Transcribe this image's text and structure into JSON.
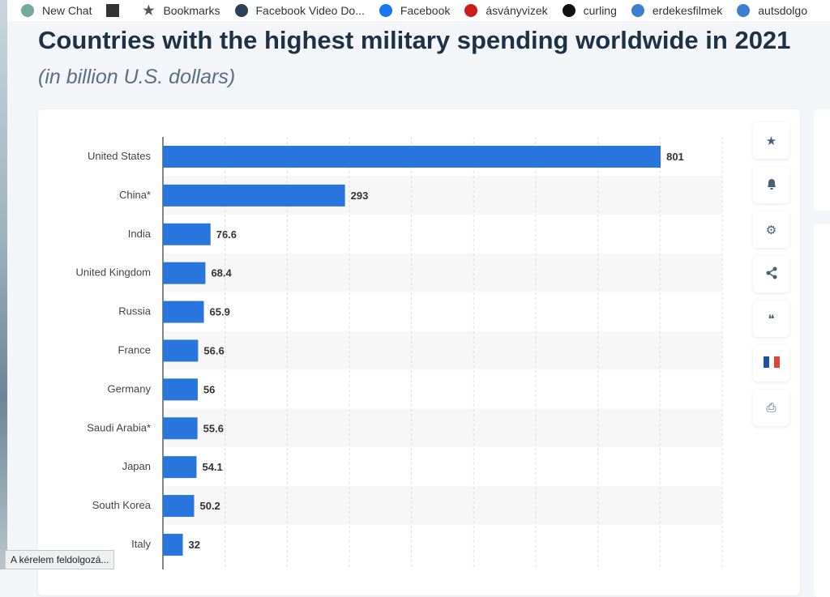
{
  "bookmarks": [
    {
      "label": "New Chat",
      "icon": "chatgpt-icon",
      "color": "#74aa9c"
    },
    {
      "label": "",
      "icon": "image-thumbnail-icon",
      "color": "#333"
    },
    {
      "label": "Bookmarks",
      "icon": "star-icon",
      "color": "#555"
    },
    {
      "label": "Facebook Video Do...",
      "icon": "facebook-f-icon",
      "color": "#2d4059"
    },
    {
      "label": "Facebook",
      "icon": "facebook-icon",
      "color": "#1877f2"
    },
    {
      "label": "ásványvizek",
      "icon": "target-icon",
      "color": "#cc1d1d"
    },
    {
      "label": "curling",
      "icon": "s-logo-icon",
      "color": "#111"
    },
    {
      "label": "erdekesfilmek",
      "icon": "blogger-icon",
      "color": "#3b7fd0"
    },
    {
      "label": "autsdolgo",
      "icon": "blogger-icon",
      "color": "#3b7fd0"
    }
  ],
  "header": {
    "title": "Countries with the highest military spending worldwide in 2021",
    "subtitle": "(in billion U.S. dollars)"
  },
  "tools": [
    {
      "icon": "star-icon",
      "glyph": "★"
    },
    {
      "icon": "bell-icon",
      "glyph": "🔔"
    },
    {
      "icon": "gear-icon",
      "glyph": "⚙"
    },
    {
      "icon": "share-icon",
      "glyph": "⋖"
    },
    {
      "icon": "quote-icon",
      "glyph": "❝"
    },
    {
      "icon": "french-flag-icon",
      "glyph": ""
    },
    {
      "icon": "print-icon",
      "glyph": "⎙"
    }
  ],
  "status": "A kérelem feldolgozá...",
  "colors": {
    "bar": "#2876dd",
    "label": "#333"
  },
  "chart_data": {
    "type": "bar",
    "orientation": "horizontal",
    "title": "Countries with the highest military spending worldwide in 2021",
    "subtitle": "(in billion U.S. dollars)",
    "categories": [
      "United States",
      "China*",
      "India",
      "United Kingdom",
      "Russia",
      "France",
      "Germany",
      "Saudi Arabia*",
      "Japan",
      "South Korea",
      "Italy"
    ],
    "values": [
      801,
      293,
      76.6,
      68.4,
      65.9,
      56.6,
      56,
      55.6,
      54.1,
      50.2,
      32
    ],
    "value_labels": [
      "801",
      "293",
      "76.6",
      "68.4",
      "65.9",
      "56.6",
      "56",
      "55.6",
      "54.1",
      "50.2",
      "32"
    ],
    "xlim": [
      0,
      900
    ],
    "grid": true
  }
}
